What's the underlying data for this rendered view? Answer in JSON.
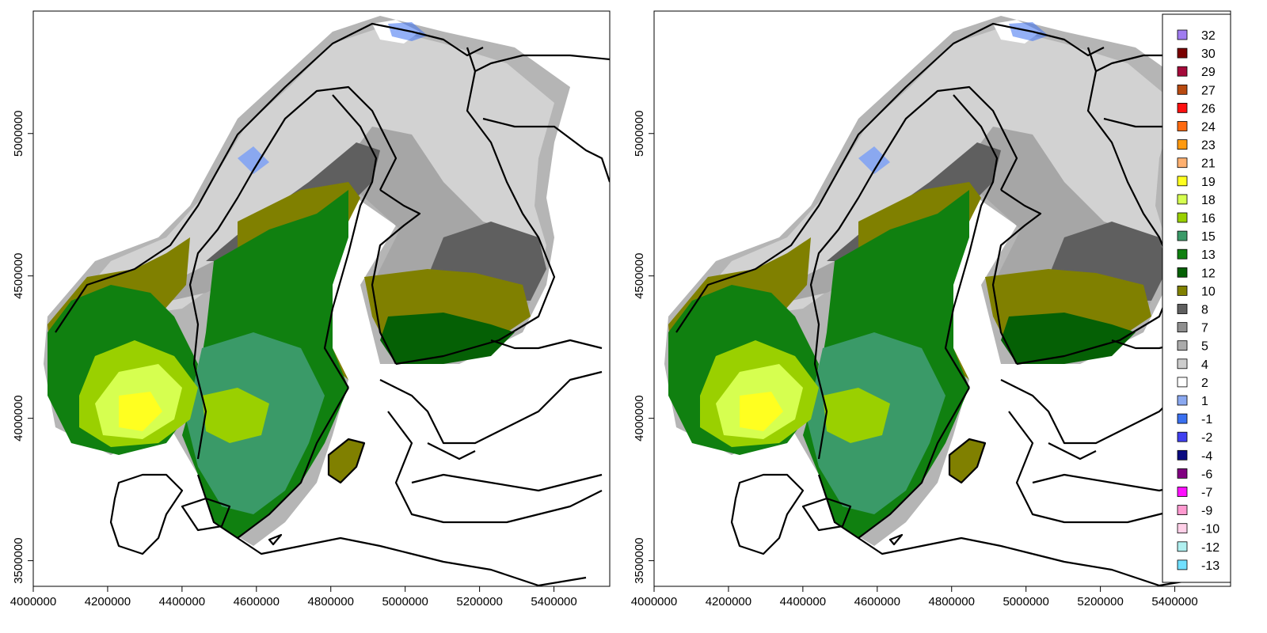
{
  "panels": [
    {
      "id": "left",
      "xlim": [
        4000000,
        5550000
      ],
      "ylim": [
        3410000,
        5430000
      ]
    },
    {
      "id": "right",
      "xlim": [
        4000000,
        5550000
      ],
      "ylim": [
        3410000,
        5430000
      ]
    }
  ],
  "x_ticks": [
    "4000000",
    "4200000",
    "4400000",
    "4600000",
    "4800000",
    "5000000",
    "5200000",
    "5400000"
  ],
  "x_tick_values": [
    4000000,
    4200000,
    4400000,
    4600000,
    4800000,
    5000000,
    5200000,
    5400000
  ],
  "y_ticks": [
    "3500000",
    "4000000",
    "4500000",
    "5000000"
  ],
  "y_tick_values": [
    3500000,
    4000000,
    4500000,
    5000000
  ],
  "legend": {
    "placement": "top-right of right panel",
    "entries": [
      {
        "label": "32",
        "color": "#a07cf0"
      },
      {
        "label": "30",
        "color": "#7a0000"
      },
      {
        "label": "29",
        "color": "#a50a3a"
      },
      {
        "label": "27",
        "color": "#b84a10"
      },
      {
        "label": "26",
        "color": "#ff1010"
      },
      {
        "label": "24",
        "color": "#ff6a10"
      },
      {
        "label": "23",
        "color": "#ff9a10"
      },
      {
        "label": "21",
        "color": "#ffb070"
      },
      {
        "label": "19",
        "color": "#ffff20"
      },
      {
        "label": "18",
        "color": "#d6ff50"
      },
      {
        "label": "16",
        "color": "#9ad000"
      },
      {
        "label": "15",
        "color": "#3a9a68"
      },
      {
        "label": "13",
        "color": "#108010"
      },
      {
        "label": "12",
        "color": "#056005"
      },
      {
        "label": "10",
        "color": "#808000"
      },
      {
        "label": "8",
        "color": "#5f5f5f"
      },
      {
        "label": "7",
        "color": "#8f8f8f"
      },
      {
        "label": "5",
        "color": "#ababab"
      },
      {
        "label": "4",
        "color": "#cdcdcd"
      },
      {
        "label": "2",
        "color": "#ffffff"
      },
      {
        "label": "1",
        "color": "#8aa8f0"
      },
      {
        "label": "-1",
        "color": "#3a70f0"
      },
      {
        "label": "-2",
        "color": "#4040f0"
      },
      {
        "label": "-4",
        "color": "#0a0a80"
      },
      {
        "label": "-6",
        "color": "#800080"
      },
      {
        "label": "-7",
        "color": "#ff10ff"
      },
      {
        "label": "-9",
        "color": "#ff9ad0"
      },
      {
        "label": "-10",
        "color": "#ffd0e8"
      },
      {
        "label": "-12",
        "color": "#b0f0f0"
      },
      {
        "label": "-13",
        "color": "#70e0ff"
      }
    ]
  }
}
